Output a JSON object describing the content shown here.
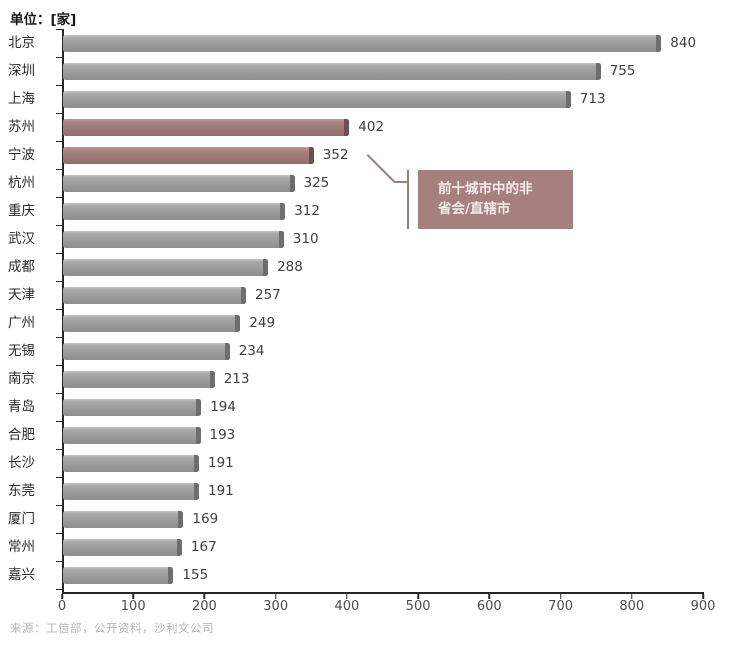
{
  "title": "单位：[家]",
  "chart_data": {
    "type": "bar",
    "orientation": "horizontal",
    "title": "单位：[家]",
    "categories": [
      "北京",
      "深圳",
      "上海",
      "苏州",
      "宁波",
      "杭州",
      "重庆",
      "武汉",
      "成都",
      "天津",
      "广州",
      "无锡",
      "南京",
      "青岛",
      "合肥",
      "长沙",
      "东莞",
      "厦门",
      "常州",
      "嘉兴"
    ],
    "values": [
      840,
      755,
      713,
      402,
      352,
      325,
      312,
      310,
      288,
      257,
      249,
      234,
      213,
      194,
      193,
      191,
      191,
      169,
      167,
      155
    ],
    "highlighted_indices": [
      3,
      4
    ],
    "highlighted_categories": [
      "苏州",
      "宁波"
    ],
    "xlim": [
      0,
      900
    ],
    "x_ticks": [
      0,
      100,
      200,
      300,
      400,
      500,
      600,
      700,
      800,
      900
    ],
    "grid": false,
    "legend": "none",
    "bar_color": "#9b9b9b",
    "bar_cap_color": "#6e6e6e",
    "highlight_color": "#9e7a78",
    "highlight_cap_color": "#6f504f",
    "annotation": "前十城市中的非省会/直辖市"
  },
  "annotation_box": {
    "line1": "前十城市中的非",
    "line2": "省会/直辖市",
    "background": "#a5807e",
    "text_color": "#f3ecec"
  },
  "source": "来源：工信部，公开资料，沙利文公司"
}
